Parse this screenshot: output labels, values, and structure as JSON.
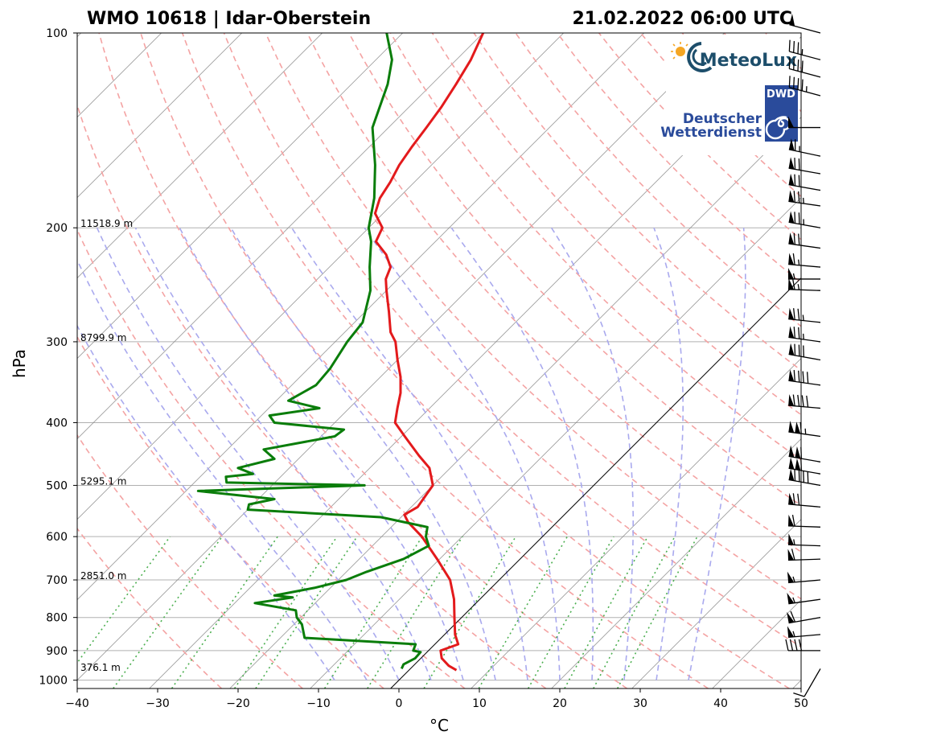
{
  "chart_data": {
    "type": "line",
    "title_left": "WMO 10618 | Idar-Oberstein",
    "title_right": "21.02.2022 06:00 UTC",
    "xlabel": "°C",
    "ylabel": "hPa",
    "xlim": [
      -40,
      50
    ],
    "ylim": [
      1030,
      100
    ],
    "y_scale": "log",
    "skew": true,
    "x_ticks": [
      -40,
      -30,
      -20,
      -10,
      0,
      10,
      20,
      30,
      40,
      50
    ],
    "y_ticks": [
      100,
      200,
      300,
      400,
      500,
      600,
      700,
      800,
      900,
      1000
    ],
    "grid": true,
    "height_labels": [
      {
        "p": 200,
        "label": "11518.9 m"
      },
      {
        "p": 300,
        "label": "8799.9 m"
      },
      {
        "p": 500,
        "label": "5295.1 m"
      },
      {
        "p": 700,
        "label": "2851.0 m"
      },
      {
        "p": 970,
        "label": "376.1 m"
      }
    ],
    "series": [
      {
        "kind": "temperature",
        "color": "#e31a1c",
        "points": [
          [
            965,
            5.9
          ],
          [
            950,
            4.4
          ],
          [
            925,
            2.6
          ],
          [
            900,
            1.5
          ],
          [
            880,
            2.9
          ],
          [
            850,
            1.3
          ],
          [
            800,
            -0.9
          ],
          [
            750,
            -3.2
          ],
          [
            700,
            -6.1
          ],
          [
            650,
            -10.3
          ],
          [
            600,
            -15.0
          ],
          [
            570,
            -18.5
          ],
          [
            555,
            -19.9
          ],
          [
            540,
            -19.2
          ],
          [
            520,
            -19.6
          ],
          [
            500,
            -20.0
          ],
          [
            470,
            -22.6
          ],
          [
            450,
            -25.4
          ],
          [
            420,
            -29.6
          ],
          [
            400,
            -32.5
          ],
          [
            380,
            -34.0
          ],
          [
            360,
            -35.5
          ],
          [
            340,
            -37.5
          ],
          [
            320,
            -40.0
          ],
          [
            300,
            -42.5
          ],
          [
            290,
            -44.3
          ],
          [
            270,
            -47.0
          ],
          [
            250,
            -50.0
          ],
          [
            240,
            -51.5
          ],
          [
            230,
            -52.4
          ],
          [
            220,
            -54.5
          ],
          [
            210,
            -57.4
          ],
          [
            200,
            -58.3
          ],
          [
            190,
            -61.0
          ],
          [
            180,
            -62.3
          ],
          [
            170,
            -63.0
          ],
          [
            160,
            -64.0
          ],
          [
            150,
            -64.7
          ],
          [
            140,
            -65.3
          ],
          [
            130,
            -66.0
          ],
          [
            120,
            -67.0
          ],
          [
            110,
            -68.2
          ],
          [
            100,
            -70.0
          ]
        ]
      },
      {
        "kind": "dewpoint",
        "color": "#0a7d0a",
        "points": [
          [
            960,
            -1.1
          ],
          [
            945,
            -1.4
          ],
          [
            925,
            -0.7
          ],
          [
            905,
            -0.8
          ],
          [
            900,
            -1.9
          ],
          [
            880,
            -2.4
          ],
          [
            860,
            -17.0
          ],
          [
            820,
            -19.0
          ],
          [
            800,
            -20.5
          ],
          [
            780,
            -21.5
          ],
          [
            760,
            -27.5
          ],
          [
            745,
            -23.5
          ],
          [
            740,
            -26.0
          ],
          [
            720,
            -22.0
          ],
          [
            700,
            -19.0
          ],
          [
            680,
            -17.5
          ],
          [
            650,
            -14.5
          ],
          [
            620,
            -13.0
          ],
          [
            600,
            -14.5
          ],
          [
            580,
            -15.5
          ],
          [
            560,
            -22.5
          ],
          [
            545,
            -40.0
          ],
          [
            535,
            -40.5
          ],
          [
            525,
            -38.0
          ],
          [
            510,
            -48.5
          ],
          [
            500,
            -28.5
          ],
          [
            495,
            -46.0
          ],
          [
            485,
            -46.8
          ],
          [
            480,
            -43.8
          ],
          [
            470,
            -46.4
          ],
          [
            455,
            -43.0
          ],
          [
            440,
            -45.5
          ],
          [
            420,
            -38.3
          ],
          [
            410,
            -38.0
          ],
          [
            400,
            -47.5
          ],
          [
            390,
            -49.0
          ],
          [
            380,
            -43.7
          ],
          [
            370,
            -48.5
          ],
          [
            350,
            -47.0
          ],
          [
            330,
            -47.3
          ],
          [
            300,
            -48.5
          ],
          [
            280,
            -49.0
          ],
          [
            250,
            -52.0
          ],
          [
            230,
            -55.0
          ],
          [
            210,
            -58.0
          ],
          [
            200,
            -60.0
          ],
          [
            180,
            -63.0
          ],
          [
            160,
            -67.0
          ],
          [
            140,
            -72.0
          ],
          [
            120,
            -75.5
          ],
          [
            110,
            -78.0
          ],
          [
            100,
            -82.0
          ]
        ]
      }
    ],
    "wind_barbs": [
      {
        "p": 960,
        "dir": 210,
        "kt": 10
      },
      {
        "p": 900,
        "dir": 270,
        "kt": 40
      },
      {
        "p": 850,
        "dir": 265,
        "kt": 55
      },
      {
        "p": 800,
        "dir": 260,
        "kt": 60
      },
      {
        "p": 750,
        "dir": 262,
        "kt": 55
      },
      {
        "p": 700,
        "dir": 265,
        "kt": 55
      },
      {
        "p": 650,
        "dir": 268,
        "kt": 60
      },
      {
        "p": 620,
        "dir": 272,
        "kt": 55
      },
      {
        "p": 580,
        "dir": 272,
        "kt": 60
      },
      {
        "p": 540,
        "dir": 275,
        "kt": 70
      },
      {
        "p": 500,
        "dir": 280,
        "kt": 90
      },
      {
        "p": 480,
        "dir": 280,
        "kt": 110
      },
      {
        "p": 460,
        "dir": 280,
        "kt": 110
      },
      {
        "p": 420,
        "dir": 278,
        "kt": 115
      },
      {
        "p": 380,
        "dir": 275,
        "kt": 90
      },
      {
        "p": 350,
        "dir": 278,
        "kt": 90
      },
      {
        "p": 320,
        "dir": 280,
        "kt": 80
      },
      {
        "p": 300,
        "dir": 278,
        "kt": 75
      },
      {
        "p": 280,
        "dir": 276,
        "kt": 75
      },
      {
        "p": 250,
        "dir": 272,
        "kt": 65
      },
      {
        "p": 240,
        "dir": 270,
        "kt": 55
      },
      {
        "p": 230,
        "dir": 275,
        "kt": 65
      },
      {
        "p": 215,
        "dir": 278,
        "kt": 70
      },
      {
        "p": 200,
        "dir": 280,
        "kt": 75
      },
      {
        "p": 185,
        "dir": 278,
        "kt": 75
      },
      {
        "p": 175,
        "dir": 280,
        "kt": 70
      },
      {
        "p": 165,
        "dir": 280,
        "kt": 70
      },
      {
        "p": 155,
        "dir": 282,
        "kt": 65
      },
      {
        "p": 140,
        "dir": 270,
        "kt": 50
      },
      {
        "p": 125,
        "dir": 285,
        "kt": 45
      },
      {
        "p": 117,
        "dir": 285,
        "kt": 40
      },
      {
        "p": 110,
        "dir": 285,
        "kt": 35
      },
      {
        "p": 100,
        "dir": 285,
        "kt": 50
      }
    ]
  },
  "logos": {
    "meteolux": "MeteoLux",
    "dwd_badge": "DWD",
    "dwd_line1": "Deutscher",
    "dwd_line2": "Wetterdienst"
  },
  "colors": {
    "temperature": "#e31a1c",
    "dewpoint": "#0a7d0a",
    "dry_adiabat": "#f4a3a3",
    "moist_adiabat": "#a9a9ee",
    "mixing_ratio": "#4caf50",
    "isotherm": "#888888",
    "isobar": "#b0b0b0"
  }
}
